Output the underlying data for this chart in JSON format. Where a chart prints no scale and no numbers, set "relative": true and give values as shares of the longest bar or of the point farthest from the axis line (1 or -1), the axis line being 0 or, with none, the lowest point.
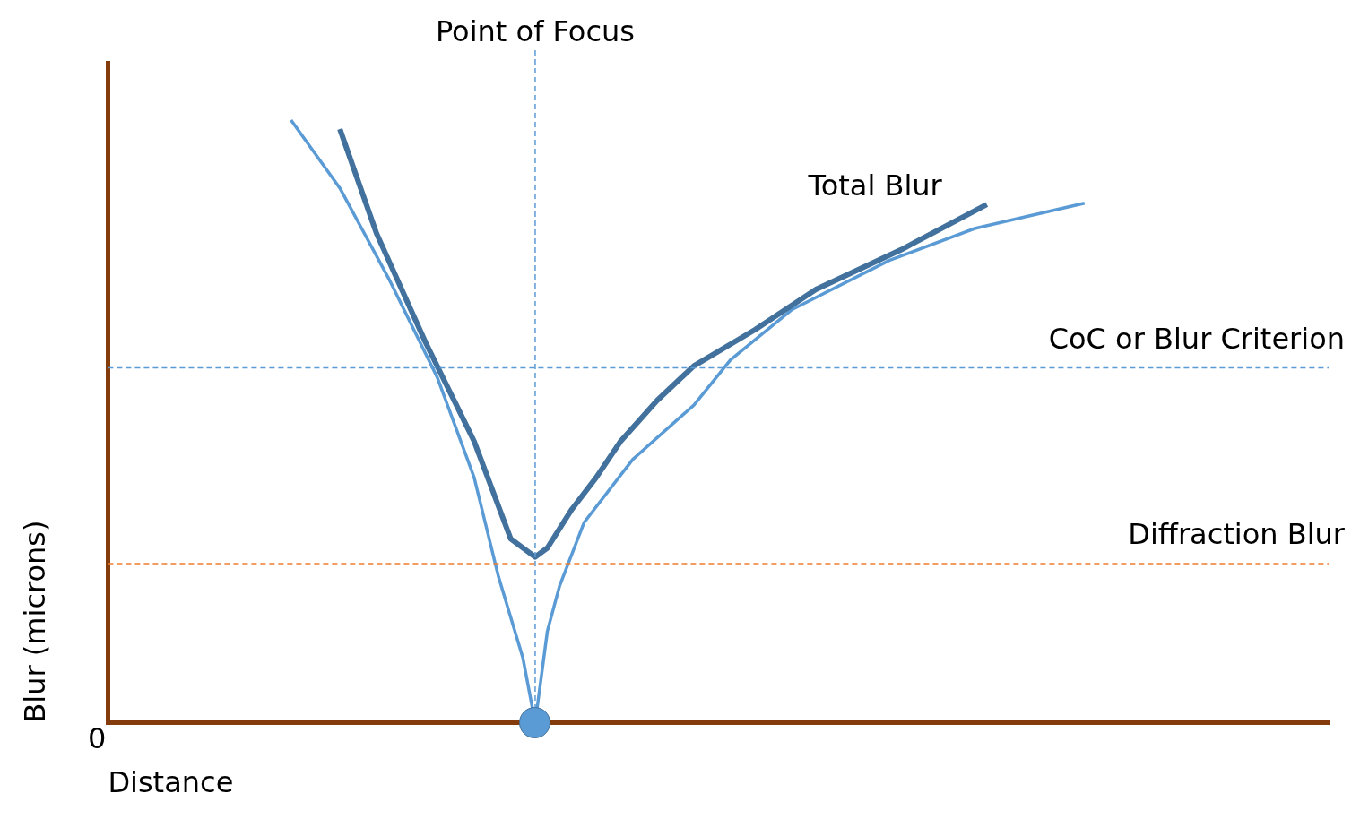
{
  "chart_data": {
    "type": "line",
    "relative": true,
    "xlabel": "Distance",
    "ylabel": "Blur (microns)",
    "tick_labels": false,
    "grid": false,
    "legend": false,
    "marker": "none",
    "line_style": "solid",
    "categories": [
      null,
      null,
      null,
      null,
      null,
      null,
      null,
      null,
      null,
      null,
      null,
      null,
      null,
      null,
      null,
      null,
      null,
      null,
      null,
      null,
      null,
      null,
      null,
      null,
      null,
      null,
      null,
      null,
      null,
      null,
      null,
      null,
      null,
      null,
      null,
      null,
      null,
      null,
      null,
      null,
      null,
      null,
      null,
      null,
      null,
      null,
      null,
      null,
      null,
      null,
      null,
      null,
      null,
      null,
      null,
      null,
      null,
      null,
      null,
      null,
      null,
      null,
      null,
      null,
      null,
      null,
      null,
      null,
      null,
      null,
      null,
      null,
      null,
      null,
      null,
      null,
      null,
      null,
      null,
      null,
      null,
      null,
      null,
      null,
      null,
      null,
      null,
      null,
      null,
      null,
      null,
      null,
      null,
      null,
      null,
      null,
      null,
      null,
      null,
      null,
      null
    ],
    "series": [
      {
        "name": "Total Blur",
        "color": "#41719c",
        "values": [
          null,
          null,
          null,
          null,
          null,
          null,
          null,
          null,
          null,
          null,
          null,
          null,
          null,
          null,
          null,
          null,
          null,
          null,
          null,
          0.985,
          null,
          null,
          0.812,
          null,
          null,
          null,
          0.632,
          null,
          null,
          null,
          0.467,
          null,
          null,
          0.305,
          null,
          0.275,
          0.29,
          null,
          0.354,
          null,
          0.407,
          null,
          0.467,
          null,
          null,
          0.535,
          null,
          null,
          0.592,
          null,
          null,
          null,
          null,
          0.652,
          null,
          null,
          null,
          null,
          0.719,
          null,
          null,
          null,
          null,
          null,
          null,
          0.785,
          null,
          null,
          null,
          null,
          null,
          null,
          0.86,
          null,
          null,
          null,
          null,
          null,
          null,
          null,
          null,
          null,
          null,
          null,
          null,
          null,
          null,
          null,
          null,
          null,
          null,
          null,
          null,
          null,
          null,
          null,
          null,
          null,
          null,
          null,
          null
        ]
      },
      {
        "color": "#5b9bd5",
        "values": [
          null,
          null,
          null,
          null,
          null,
          null,
          null,
          null,
          null,
          null,
          null,
          null,
          null,
          null,
          null,
          1.0,
          null,
          null,
          null,
          0.887,
          null,
          null,
          null,
          0.737,
          null,
          null,
          null,
          0.572,
          null,
          null,
          0.407,
          null,
          0.242,
          null,
          0.107,
          0,
          0.152,
          0.227,
          null,
          0.332,
          null,
          null,
          null,
          0.437,
          null,
          null,
          null,
          null,
          0.527,
          null,
          null,
          0.602,
          null,
          null,
          null,
          null,
          0.685,
          null,
          null,
          null,
          null,
          null,
          null,
          null,
          0.767,
          null,
          null,
          null,
          null,
          null,
          null,
          0.82,
          null,
          null,
          null,
          null,
          null,
          null,
          null,
          null,
          0.862,
          null,
          null,
          null,
          null,
          null,
          null,
          null,
          null,
          null,
          null,
          null,
          null,
          null,
          null,
          null,
          null,
          null,
          null,
          null,
          null
        ]
      }
    ],
    "ref_lines": [
      {
        "axis": "x",
        "label": "Point of Focus",
        "color": "#5b9bd5",
        "line_style": "dashed"
      },
      {
        "axis": "y",
        "value": 0.589,
        "label": "CoC or Blur Criterion",
        "color": "#5b9bd5",
        "line_style": "dashed"
      },
      {
        "axis": "y",
        "value": 0.264,
        "label": "Diffraction Blur",
        "color": "#ed7d31",
        "line_style": "dashed"
      }
    ],
    "annotations": [
      "0"
    ]
  }
}
